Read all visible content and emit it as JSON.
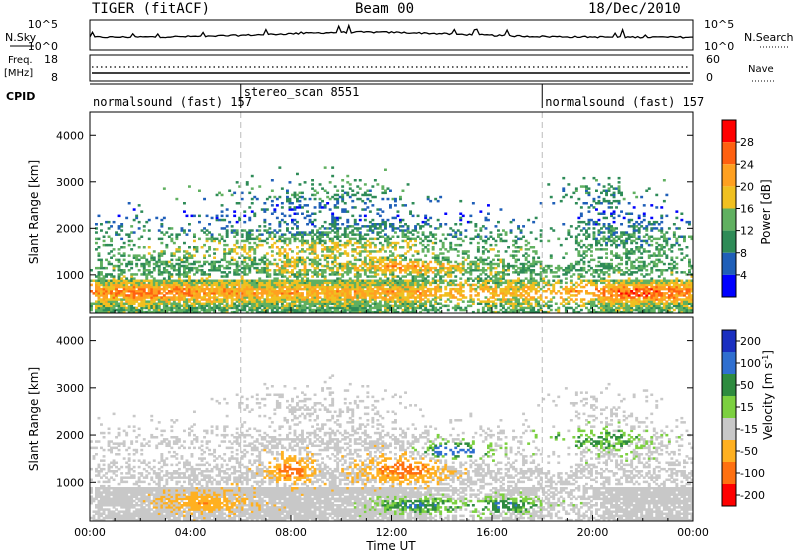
{
  "header": {
    "station": "TIGER (fitACF)",
    "beam": "Beam 00",
    "date": "18/Dec/2010"
  },
  "top_panels": {
    "nsky_label": "N.Sky",
    "nsky_ticks": [
      "10^5",
      "10^0"
    ],
    "nsearch_label": "N.Search",
    "nsearch_ticks": [
      "10^5",
      "10^0"
    ],
    "freq_label": "Freq.",
    "freq_unit": "[MHz]",
    "freq_ticks": [
      "18",
      "8"
    ],
    "nave_label": "Nave",
    "nave_ticks": [
      "60",
      "0"
    ],
    "cpid_label": "CPID"
  },
  "cpid_segments": [
    {
      "label": "normalsound (fast) 157",
      "start_hour": 0
    },
    {
      "label": "stereo_scan 8551",
      "start_hour": 6
    },
    {
      "label": "normalsound (fast) 157",
      "start_hour": 18
    }
  ],
  "chart_data": [
    {
      "type": "heatmap",
      "ylabel": "Slant Range [km]",
      "xlabel": "",
      "xlim": [
        0,
        24
      ],
      "ylim": [
        180,
        4500
      ],
      "yticks": [
        1000,
        2000,
        3000,
        4000
      ],
      "colorbar": {
        "label": "Power [dB]",
        "ticks": [
          "4",
          "8",
          "12",
          "16",
          "20",
          "24",
          "28"
        ],
        "colors": [
          "#0000ff",
          "#1f5fb8",
          "#2e8b57",
          "#60b060",
          "#f0c020",
          "#ffa020",
          "#ff6010",
          "#ff0000"
        ]
      }
    },
    {
      "type": "heatmap",
      "ylabel": "Slant Range [km]",
      "xlabel": "Time UT",
      "xlim": [
        0,
        24
      ],
      "ylim": [
        180,
        4500
      ],
      "yticks": [
        1000,
        2000,
        3000,
        4000
      ],
      "xticks": [
        "00:00",
        "04:00",
        "08:00",
        "12:00",
        "16:00",
        "20:00",
        "00:00"
      ],
      "colorbar": {
        "label": "Velocity [m s^-1]",
        "ticks": [
          "200",
          "100",
          "50",
          "15",
          "-15",
          "-50",
          "-100",
          "-200"
        ],
        "colors": [
          "#1a2fc0",
          "#2f6fd0",
          "#2e8b3f",
          "#7cd040",
          "#c8c8c8",
          "#ffb020",
          "#ff7010",
          "#ff0000"
        ]
      }
    }
  ]
}
